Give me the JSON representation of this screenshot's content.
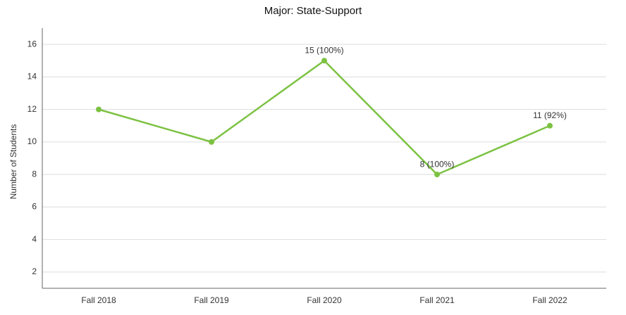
{
  "chart_data": {
    "type": "line",
    "title": "Major: State-Support",
    "y_label": "Number of Students",
    "categories": [
      "Fall 2018",
      "Fall 2019",
      "Fall 2020",
      "Fall 2021",
      "Fall 2022"
    ],
    "series": [
      {
        "name": "State-Support",
        "color": "#7cc242",
        "values": [
          12,
          10,
          15,
          8,
          11
        ],
        "value_labels": [
          null,
          null,
          "15 (100%)",
          "8 (100%)",
          "11 (92%)"
        ]
      }
    ],
    "ylim": [
      1,
      17
    ],
    "yticks": [
      2,
      4,
      6,
      8,
      10,
      12,
      14,
      16
    ],
    "grid": true
  }
}
